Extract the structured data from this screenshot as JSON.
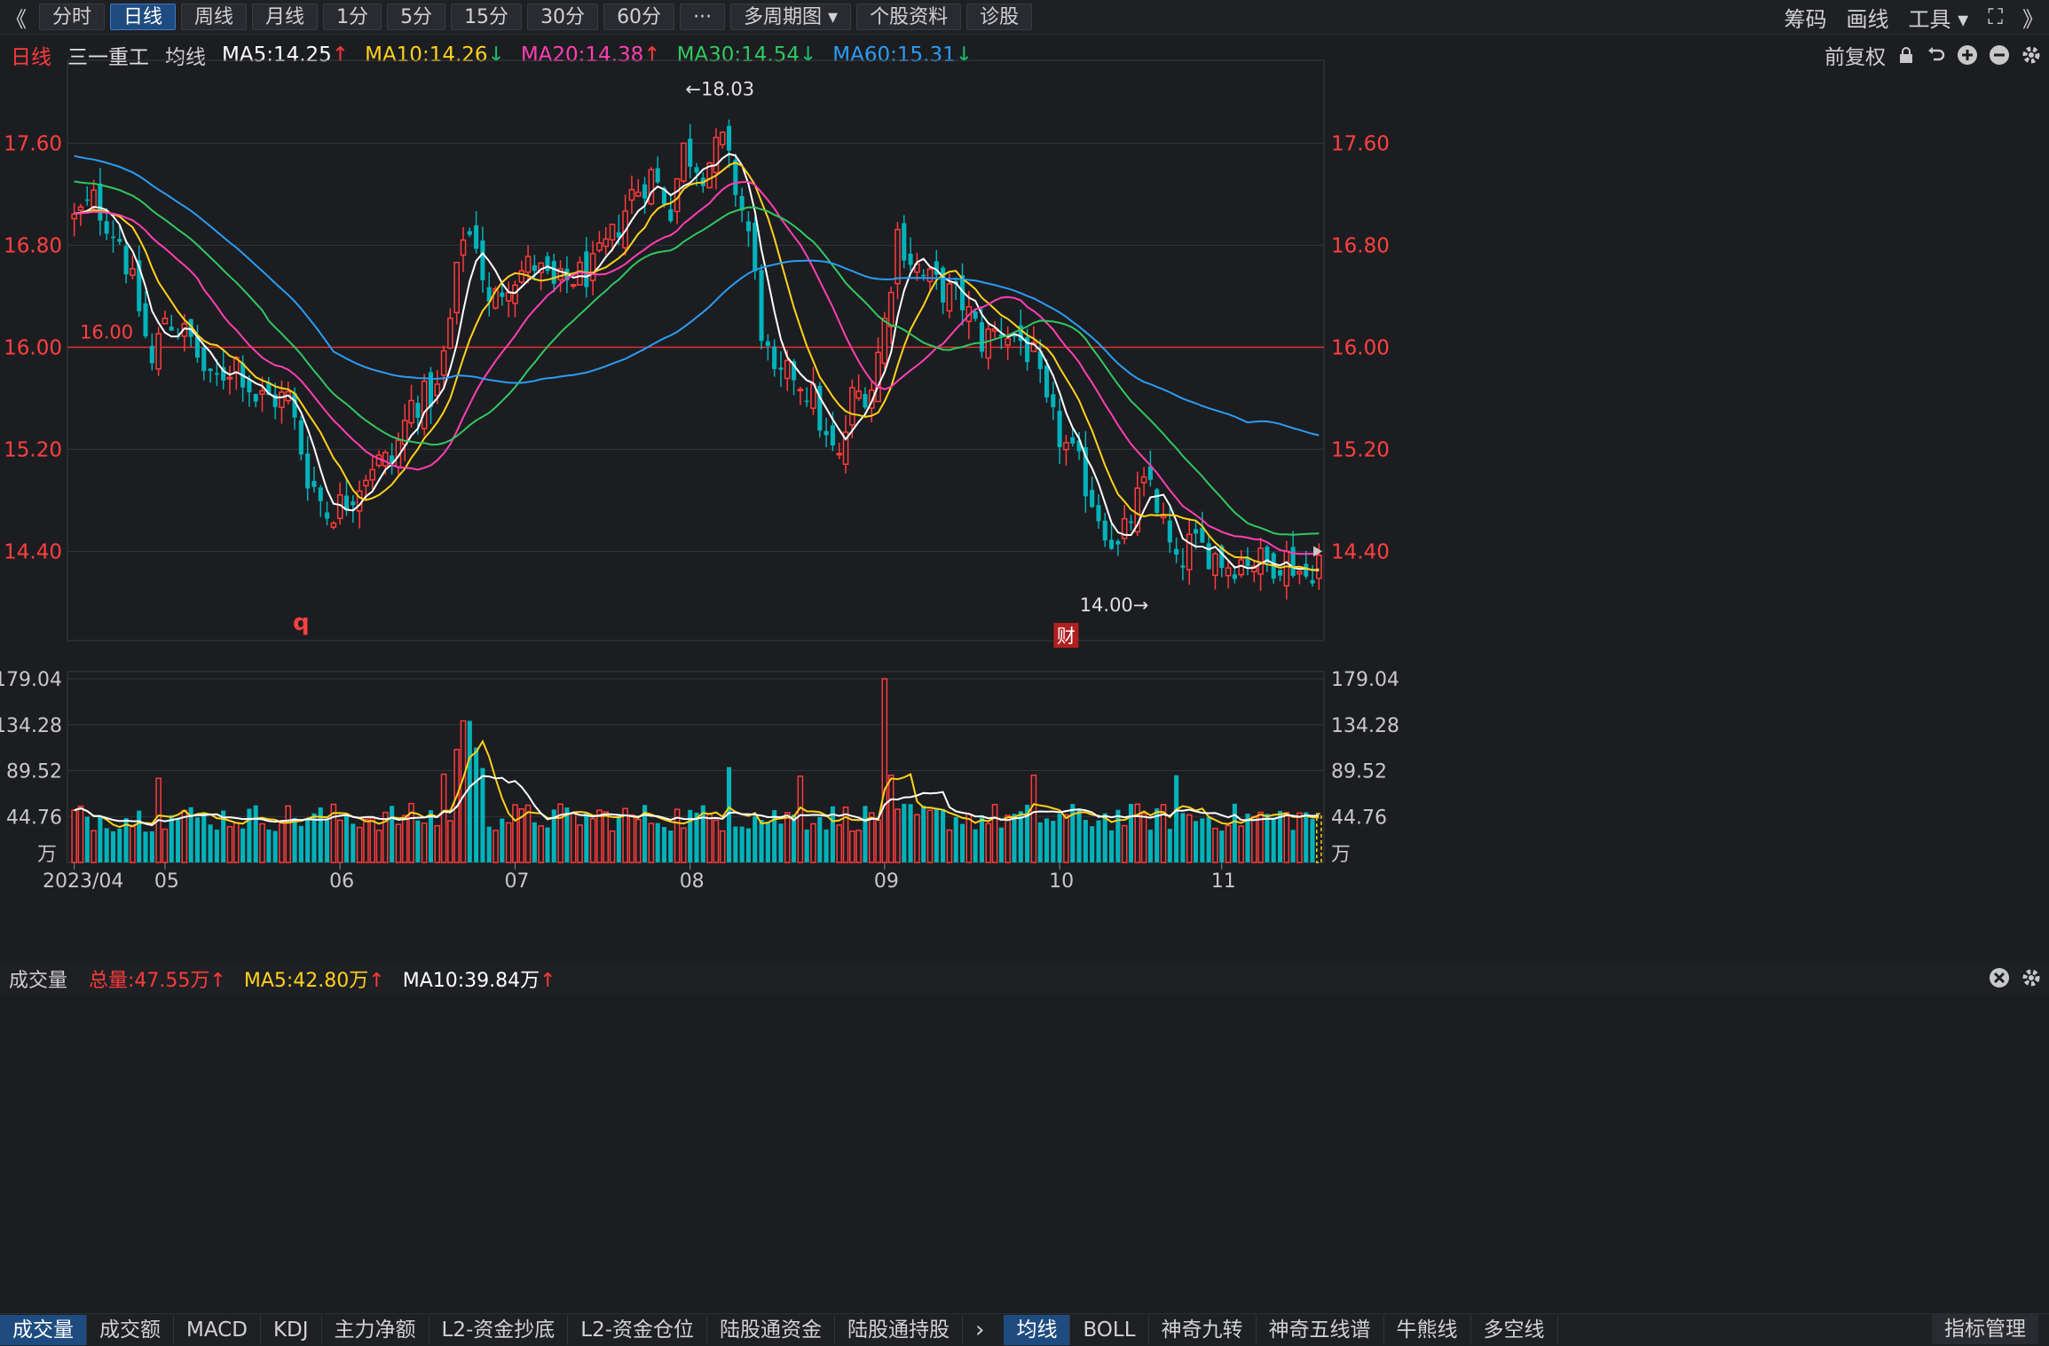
{
  "toolbar": {
    "back_label": "《",
    "tabs": [
      "分时",
      "日线",
      "周线",
      "月线",
      "1分",
      "5分",
      "15分",
      "30分",
      "60分",
      "···",
      "多周期图 ▾",
      "个股资料",
      "诊股"
    ],
    "active_tab": "日线",
    "right_items": [
      "筹码",
      "画线",
      "工具 ▾",
      "⛶",
      "》"
    ]
  },
  "legend": {
    "period": "日线",
    "stock_name": "三一重工",
    "ma_label": "均线",
    "ma_items": [
      {
        "text": "MA5:14.25",
        "arrow": "↑",
        "color": "#ffffff",
        "arrow_color": "#ff3b3b"
      },
      {
        "text": "MA10:14.26",
        "arrow": "↓",
        "color": "#ffd21a",
        "arrow_color": "#16c46a"
      },
      {
        "text": "MA20:14.38",
        "arrow": "↑",
        "color": "#ff3fb2",
        "arrow_color": "#ff3b3b"
      },
      {
        "text": "MA30:14.54",
        "arrow": "↓",
        "color": "#30c860",
        "arrow_color": "#16c46a"
      },
      {
        "text": "MA60:15.31",
        "arrow": "↓",
        "color": "#2a9df4",
        "arrow_color": "#16c46a"
      }
    ],
    "right_label": "前复权"
  },
  "volume_legend": {
    "title": "成交量",
    "total": "总量:47.55万",
    "ma5": "MA5:42.80万",
    "ma10": "MA10:39.84万"
  },
  "bottom_tabs": {
    "left": [
      "成交量",
      "成交额",
      "MACD",
      "KDJ",
      "主力净额",
      "L2-资金抄底",
      "L2-资金仓位",
      "陆股通资金",
      "陆股通持股"
    ],
    "left_active": "成交量",
    "right": [
      "均线",
      "BOLL",
      "神奇九转",
      "神奇五线谱",
      "牛熊线",
      "多空线"
    ],
    "right_active": "均线",
    "far_right": "指标管理"
  },
  "colors": {
    "up": "#ff3b3b",
    "down": "#00b2b9",
    "ma5": "#ffffff",
    "ma10": "#ffd21a",
    "ma20": "#ff3fb2",
    "ma30": "#30c860",
    "ma60": "#2a9df4",
    "ref_line": "#e03030"
  },
  "chart_data": [
    {
      "type": "candlestick",
      "title": "日线",
      "y_ticks": [
        14.4,
        15.2,
        16.0,
        16.8,
        17.6
      ],
      "ylim": [
        13.7,
        18.25
      ],
      "reference_line": 16.0,
      "high_label": "←18.03",
      "high_value": 18.03,
      "low_label": "14.00→",
      "low_value": 14.0,
      "markers": [
        "q",
        "财"
      ],
      "x_labels": [
        "2023/04",
        "05",
        "06",
        "07",
        "08",
        "09",
        "10",
        "11"
      ],
      "x_label_days": [
        0,
        14,
        41,
        68,
        95,
        125,
        152,
        177
      ],
      "days": 193,
      "anchors": [
        [
          0,
          17.0
        ],
        [
          3,
          17.15
        ],
        [
          7,
          16.85
        ],
        [
          10,
          16.3
        ],
        [
          12,
          15.85
        ],
        [
          14,
          16.25
        ],
        [
          18,
          16.05
        ],
        [
          21,
          15.7
        ],
        [
          25,
          15.9
        ],
        [
          28,
          15.6
        ],
        [
          33,
          15.6
        ],
        [
          36,
          15.0
        ],
        [
          39,
          14.7
        ],
        [
          42,
          14.8
        ],
        [
          46,
          15.1
        ],
        [
          49,
          15.1
        ],
        [
          52,
          15.55
        ],
        [
          56,
          15.65
        ],
        [
          58,
          16.2
        ],
        [
          60,
          16.9
        ],
        [
          62,
          16.85
        ],
        [
          64,
          16.3
        ],
        [
          67,
          16.55
        ],
        [
          71,
          16.65
        ],
        [
          74,
          16.45
        ],
        [
          77,
          16.55
        ],
        [
          80,
          16.6
        ],
        [
          83,
          16.85
        ],
        [
          86,
          17.2
        ],
        [
          89,
          17.35
        ],
        [
          92,
          17.1
        ],
        [
          94,
          17.55
        ],
        [
          97,
          17.4
        ],
        [
          100,
          17.6
        ],
        [
          102,
          17.25
        ],
        [
          104,
          16.9
        ],
        [
          106,
          16.15
        ],
        [
          108,
          15.7
        ],
        [
          111,
          15.8
        ],
        [
          114,
          15.6
        ],
        [
          116,
          15.25
        ],
        [
          118,
          15.1
        ],
        [
          120,
          15.6
        ],
        [
          123,
          15.7
        ],
        [
          125,
          16.2
        ],
        [
          127,
          16.9
        ],
        [
          129,
          16.7
        ],
        [
          131,
          16.55
        ],
        [
          134,
          16.45
        ],
        [
          137,
          16.35
        ],
        [
          140,
          16.05
        ],
        [
          143,
          16.15
        ],
        [
          146,
          16.05
        ],
        [
          148,
          15.9
        ],
        [
          150,
          15.5
        ],
        [
          152,
          15.3
        ],
        [
          155,
          15.05
        ],
        [
          158,
          14.7
        ],
        [
          161,
          14.4
        ],
        [
          164,
          14.8
        ],
        [
          166,
          14.95
        ],
        [
          168,
          14.6
        ],
        [
          170,
          14.25
        ],
        [
          172,
          14.45
        ],
        [
          175,
          14.4
        ],
        [
          178,
          14.3
        ],
        [
          181,
          14.35
        ],
        [
          184,
          14.3
        ],
        [
          187,
          14.35
        ],
        [
          190,
          14.2
        ],
        [
          192,
          14.35
        ]
      ],
      "ma_start": [
        [
          5,
          17.05
        ],
        [
          10,
          17.05
        ],
        [
          20,
          17.05
        ],
        [
          30,
          17.3
        ],
        [
          60,
          17.5
        ]
      ],
      "ma_end": [
        [
          5,
          14.25
        ],
        [
          10,
          14.26
        ],
        [
          20,
          14.38
        ],
        [
          30,
          14.54
        ],
        [
          60,
          15.31
        ]
      ]
    },
    {
      "type": "bar",
      "title": "成交量",
      "unit": "万",
      "y_ticks": [
        44.76,
        89.52,
        134.28,
        179.04
      ],
      "ylim": [
        0,
        179.04
      ],
      "last_volume": 47.55,
      "volume_spikes": [
        [
          13,
          82
        ],
        [
          57,
          86
        ],
        [
          59,
          110
        ],
        [
          60,
          138
        ],
        [
          61,
          138
        ],
        [
          62,
          112
        ],
        [
          63,
          92
        ],
        [
          101,
          93
        ],
        [
          112,
          84
        ],
        [
          125,
          179
        ],
        [
          126,
          85
        ],
        [
          148,
          85
        ],
        [
          170,
          85
        ]
      ],
      "ma5_last": 42.8,
      "ma10_last": 39.84
    }
  ]
}
